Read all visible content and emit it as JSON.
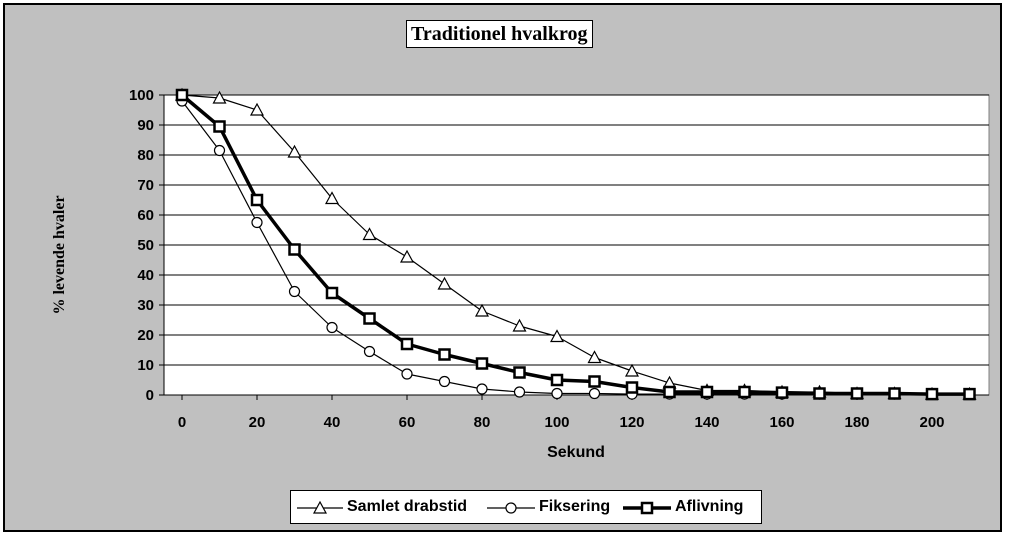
{
  "chart_data": {
    "type": "line",
    "title": "Traditionel hvalkrog",
    "xlabel": "Sekund",
    "ylabel": "% levende hvaler",
    "xlim": [
      0,
      210
    ],
    "ylim": [
      0,
      100
    ],
    "x_ticks": [
      "0",
      "20",
      "40",
      "60",
      "80",
      "100",
      "120",
      "140",
      "160",
      "180",
      "200"
    ],
    "y_ticks": [
      "0",
      "10",
      "20",
      "30",
      "40",
      "50",
      "60",
      "70",
      "80",
      "90",
      "100"
    ],
    "grid": "horizontal",
    "legend_position": "bottom",
    "x": [
      0,
      10,
      20,
      30,
      40,
      50,
      60,
      70,
      80,
      90,
      100,
      110,
      120,
      130,
      140,
      150,
      160,
      170,
      180,
      190,
      200,
      210
    ],
    "series": [
      {
        "name": "Samlet drabstid",
        "marker": "triangle",
        "values": [
          100,
          99,
          95,
          81,
          65.5,
          53.5,
          46,
          37,
          28,
          23,
          19.5,
          12.5,
          8,
          4,
          1.5,
          1.5,
          1,
          1,
          0.5,
          0.5,
          0.3,
          0.3
        ]
      },
      {
        "name": "Fiksering",
        "marker": "circle",
        "values": [
          98,
          81.5,
          57.5,
          34.5,
          22.5,
          14.5,
          7,
          4.5,
          2,
          1,
          0.5,
          0.5,
          0.3,
          0.3,
          0.3,
          0.3,
          0.3,
          0.3,
          0.3,
          0.3,
          0.3,
          0.3
        ]
      },
      {
        "name": "Aflivning",
        "marker": "square",
        "values": [
          100,
          89.5,
          65,
          48.5,
          34,
          25.5,
          17,
          13.5,
          10.5,
          7.5,
          5,
          4.5,
          2.5,
          1,
          1,
          1,
          0.8,
          0.5,
          0.5,
          0.5,
          0.3,
          0.3
        ]
      }
    ]
  }
}
